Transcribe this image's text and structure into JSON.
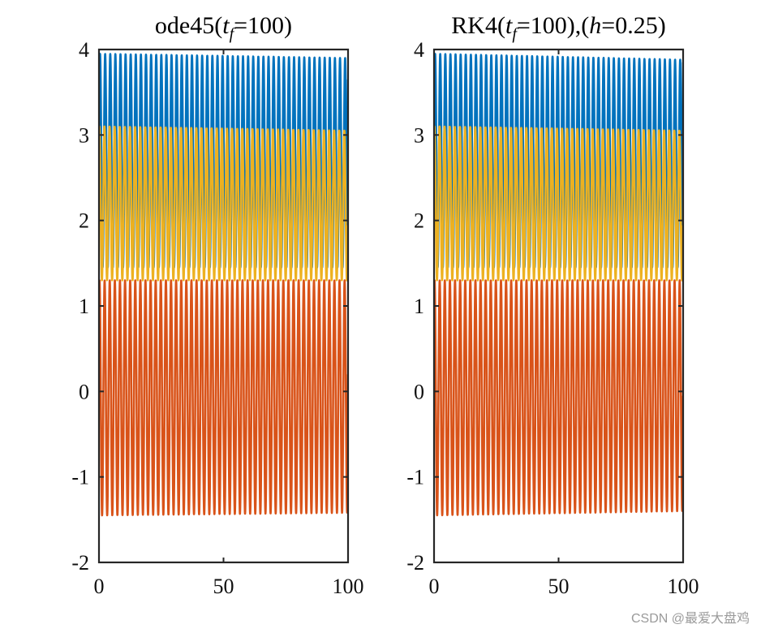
{
  "watermark": "CSDN @最爱大盘鸡",
  "chart_data": [
    {
      "type": "line",
      "title": "ode45(t_f=100)",
      "title_parts": {
        "prefix": "ode45(",
        "var": "t",
        "sub": "f",
        "suffix": "=100)"
      },
      "xlim": [
        0,
        100
      ],
      "ylim": [
        -2,
        4
      ],
      "xticks": [
        0,
        50,
        100
      ],
      "yticks": [
        -2,
        -1,
        0,
        1,
        2,
        3,
        4
      ],
      "grid": false,
      "series": [
        {
          "color": "#0072BD",
          "period": 2.05,
          "min": 1.45,
          "max_start": 3.95,
          "max_end": 3.9,
          "start": 3.0,
          "end": 3.65
        },
        {
          "color": "#EDB120",
          "period": 2.05,
          "min": 1.3,
          "max_start": 3.1,
          "max_end": 3.05,
          "start": 3.0,
          "end": 1.3
        },
        {
          "color": "#D95319",
          "period": 2.05,
          "min_start": -1.45,
          "min_end": -1.42,
          "max": 1.3,
          "start": 1.0,
          "end": 0.2
        }
      ]
    },
    {
      "type": "line",
      "title": "RK4(t_f=100),(h=0.25)",
      "title_parts": {
        "prefix": "RK4(",
        "var": "t",
        "sub": "f",
        "suffix": "=100),(",
        "var2": "h",
        "suffix2": "=0.25)"
      },
      "xlim": [
        0,
        100
      ],
      "ylim": [
        -2,
        4
      ],
      "xticks": [
        0,
        50,
        100
      ],
      "yticks": [
        -2,
        -1,
        0,
        1,
        2,
        3,
        4
      ],
      "grid": false,
      "series": [
        {
          "color": "#0072BD",
          "period": 2.05,
          "min": 1.45,
          "max_start": 3.95,
          "max_end": 3.88,
          "start": 3.0,
          "end": 3.85
        },
        {
          "color": "#EDB120",
          "period": 2.05,
          "min": 1.3,
          "max_start": 3.1,
          "max_end": 3.05,
          "start": 3.0,
          "end": 1.4
        },
        {
          "color": "#D95319",
          "period": 2.05,
          "min_start": -1.45,
          "min_end": -1.4,
          "max": 1.3,
          "start": 1.0,
          "end": -0.05
        }
      ]
    }
  ]
}
